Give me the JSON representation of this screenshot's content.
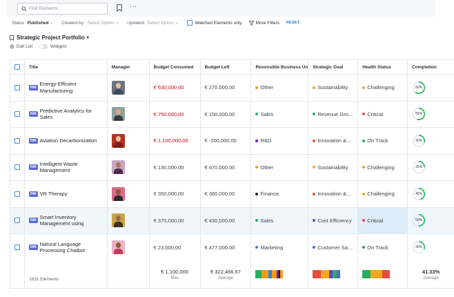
{
  "toolbar": {
    "search_placeholder": "Find Elements",
    "more_label": "···"
  },
  "filters": {
    "status_label": "Status",
    "status_value": "Published",
    "created_label": "Created by",
    "created_placeholder": "Select Option",
    "updated_label": "Updated",
    "updated_placeholder": "Select Option",
    "watched_label": "Watched Elements only",
    "more_filters_label": "More Filters",
    "reset_label": "RESET"
  },
  "view": {
    "title": "Strategic Project Portfolio",
    "edit_list_label": "Edit List",
    "widgets_label": "Widgets"
  },
  "columns": [
    "Title",
    "Manager",
    "Budget Consumed",
    "Budget Left",
    "Resonsible Business Unit",
    "Strategic Goal",
    "Health Status",
    "Completion"
  ],
  "colors": {
    "tag": "#5468d8",
    "accent": "#1f78d1",
    "negative": "#d0021b",
    "ring": "#2dbe60"
  },
  "rows": [
    {
      "tag": "INN",
      "title": "Energy-Efficient Manufacturing",
      "budget_consumed": "€ 630,000,00",
      "consumed_negative": true,
      "budget_left": "€ 270,000,00",
      "bu": "Other",
      "bu_color": "#f39c12",
      "goal": "Sustainability",
      "goal_color": "#f5a623",
      "health": "Challenging",
      "health_color": "#f5a623",
      "completion": 60,
      "completion_label": "60%",
      "highlight": false,
      "avatar": {
        "bg": "#6b7480",
        "skin": "#e6bfa3",
        "shirt": "#3c4a5a"
      }
    },
    {
      "tag": "INN",
      "title": "Predictive Analytics for Sales",
      "budget_consumed": "€ 750,000,00",
      "consumed_negative": true,
      "budget_left": "€ 150,000,00",
      "bu": "Sales",
      "bu_color": "#27ae60",
      "goal": "Revenue Gro...",
      "goal_color": "#27ae60",
      "health": "Critical",
      "health_color": "#e74c3c",
      "completion": 55,
      "completion_label": "55%",
      "highlight": false,
      "avatar": {
        "bg": "#8fa3a0",
        "skin": "#d9a88a",
        "shirt": "#2f3e3c"
      }
    },
    {
      "tag": "INN",
      "title": "Aviation Decarbonization",
      "budget_consumed": "€ 1,100,000,00",
      "consumed_negative": true,
      "budget_left": "€ -200,000,00",
      "bu": "R&D",
      "bu_color": "#6a1fd1",
      "goal": "Innovation &...",
      "goal_color": "#e74c3c",
      "health": "On Track",
      "health_color": "#27ae60",
      "completion": 30,
      "completion_label": "30%",
      "highlight": false,
      "avatar": {
        "bg": "#b5321f",
        "skin": "#e8c0a0",
        "shirt": "#7a1f14"
      }
    },
    {
      "tag": "INN",
      "title": "Intelligent Waste Management",
      "budget_consumed": "€ 130,000,00",
      "consumed_negative": false,
      "budget_left": "€ 670,000,00",
      "bu": "Other",
      "bu_color": "#f39c12",
      "goal": "Sustainability",
      "goal_color": "#f5a623",
      "health": "Challenging",
      "health_color": "#f5a623",
      "completion": 25,
      "completion_label": "25%",
      "highlight": false,
      "avatar": {
        "bg": "#c9a6c4",
        "skin": "#b07a5a",
        "shirt": "#4b2f4a"
      }
    },
    {
      "tag": "INN",
      "title": "VR Therapy",
      "budget_consumed": "€ 350,000,00",
      "consumed_negative": false,
      "budget_left": "€ 360,000,00",
      "bu": "Finance",
      "bu_color": "#1f1f1f",
      "goal": "Innovation &...",
      "goal_color": "#e74c3c",
      "health": "Challenging",
      "health_color": "#f5a623",
      "completion": 45,
      "completion_label": "45%",
      "highlight": false,
      "avatar": {
        "bg": "#d96a8a",
        "skin": "#8a5a3c",
        "shirt": "#2a2a2a"
      }
    },
    {
      "tag": "INN",
      "title": "Smart Inventory Management using",
      "budget_consumed": "€ 370,000,00",
      "consumed_negative": false,
      "budget_left": "€ 430,000,00",
      "bu": "Sales",
      "bu_color": "#27ae60",
      "goal": "Cost Efficiency",
      "goal_color": "#6a3fd1",
      "health": "Critical",
      "health_color": "#e74c3c",
      "completion": 50,
      "completion_label": "50%",
      "highlight": true,
      "avatar": {
        "bg": "#c8a24a",
        "skin": "#9a6a48",
        "shirt": "#3a3226"
      }
    },
    {
      "tag": "INN",
      "title": "Natural Language Processing Chatbot",
      "budget_consumed": "€ 23,000,00",
      "consumed_negative": false,
      "budget_left": "€ 477,000,00",
      "bu": "Marketing",
      "bu_color": "#2e86de",
      "goal": "Customer Sati...",
      "goal_color": "#5468d8",
      "health": "On Track",
      "health_color": "#27ae60",
      "completion": 30,
      "completion_label": "30%",
      "highlight": false,
      "avatar": {
        "bg": "#e8b4c4",
        "skin": "#8e5a40",
        "shirt": "#c43a5a"
      }
    }
  ],
  "footer": {
    "count_label": "1631 Elements",
    "consumed_value": "€ 1,100,000",
    "consumed_sub": "Max",
    "left_value": "€ 322,466.67",
    "left_sub": "Average",
    "completion_value": "41.33%",
    "completion_sub": "Average",
    "bu_stack": [
      {
        "color": "#27ae60",
        "share": 22
      },
      {
        "color": "#f39c12",
        "share": 25
      },
      {
        "color": "#2e86de",
        "share": 12
      },
      {
        "color": "#f39c12",
        "share": 18
      },
      {
        "color": "#6a1fd1",
        "share": 8
      },
      {
        "color": "#1f1f1f",
        "share": 5
      },
      {
        "color": "#f39c12",
        "share": 10
      }
    ],
    "goal_stack": [
      {
        "color": "#e74c3c",
        "share": 30
      },
      {
        "color": "#f5a623",
        "share": 28
      },
      {
        "color": "#6a3fd1",
        "share": 14
      },
      {
        "color": "#27ae60",
        "share": 14
      },
      {
        "color": "#5468d8",
        "share": 14
      }
    ],
    "health_stack": [
      {
        "color": "#27ae60",
        "share": 30
      },
      {
        "color": "#f5a623",
        "share": 42
      },
      {
        "color": "#e74c3c",
        "share": 28
      }
    ]
  }
}
